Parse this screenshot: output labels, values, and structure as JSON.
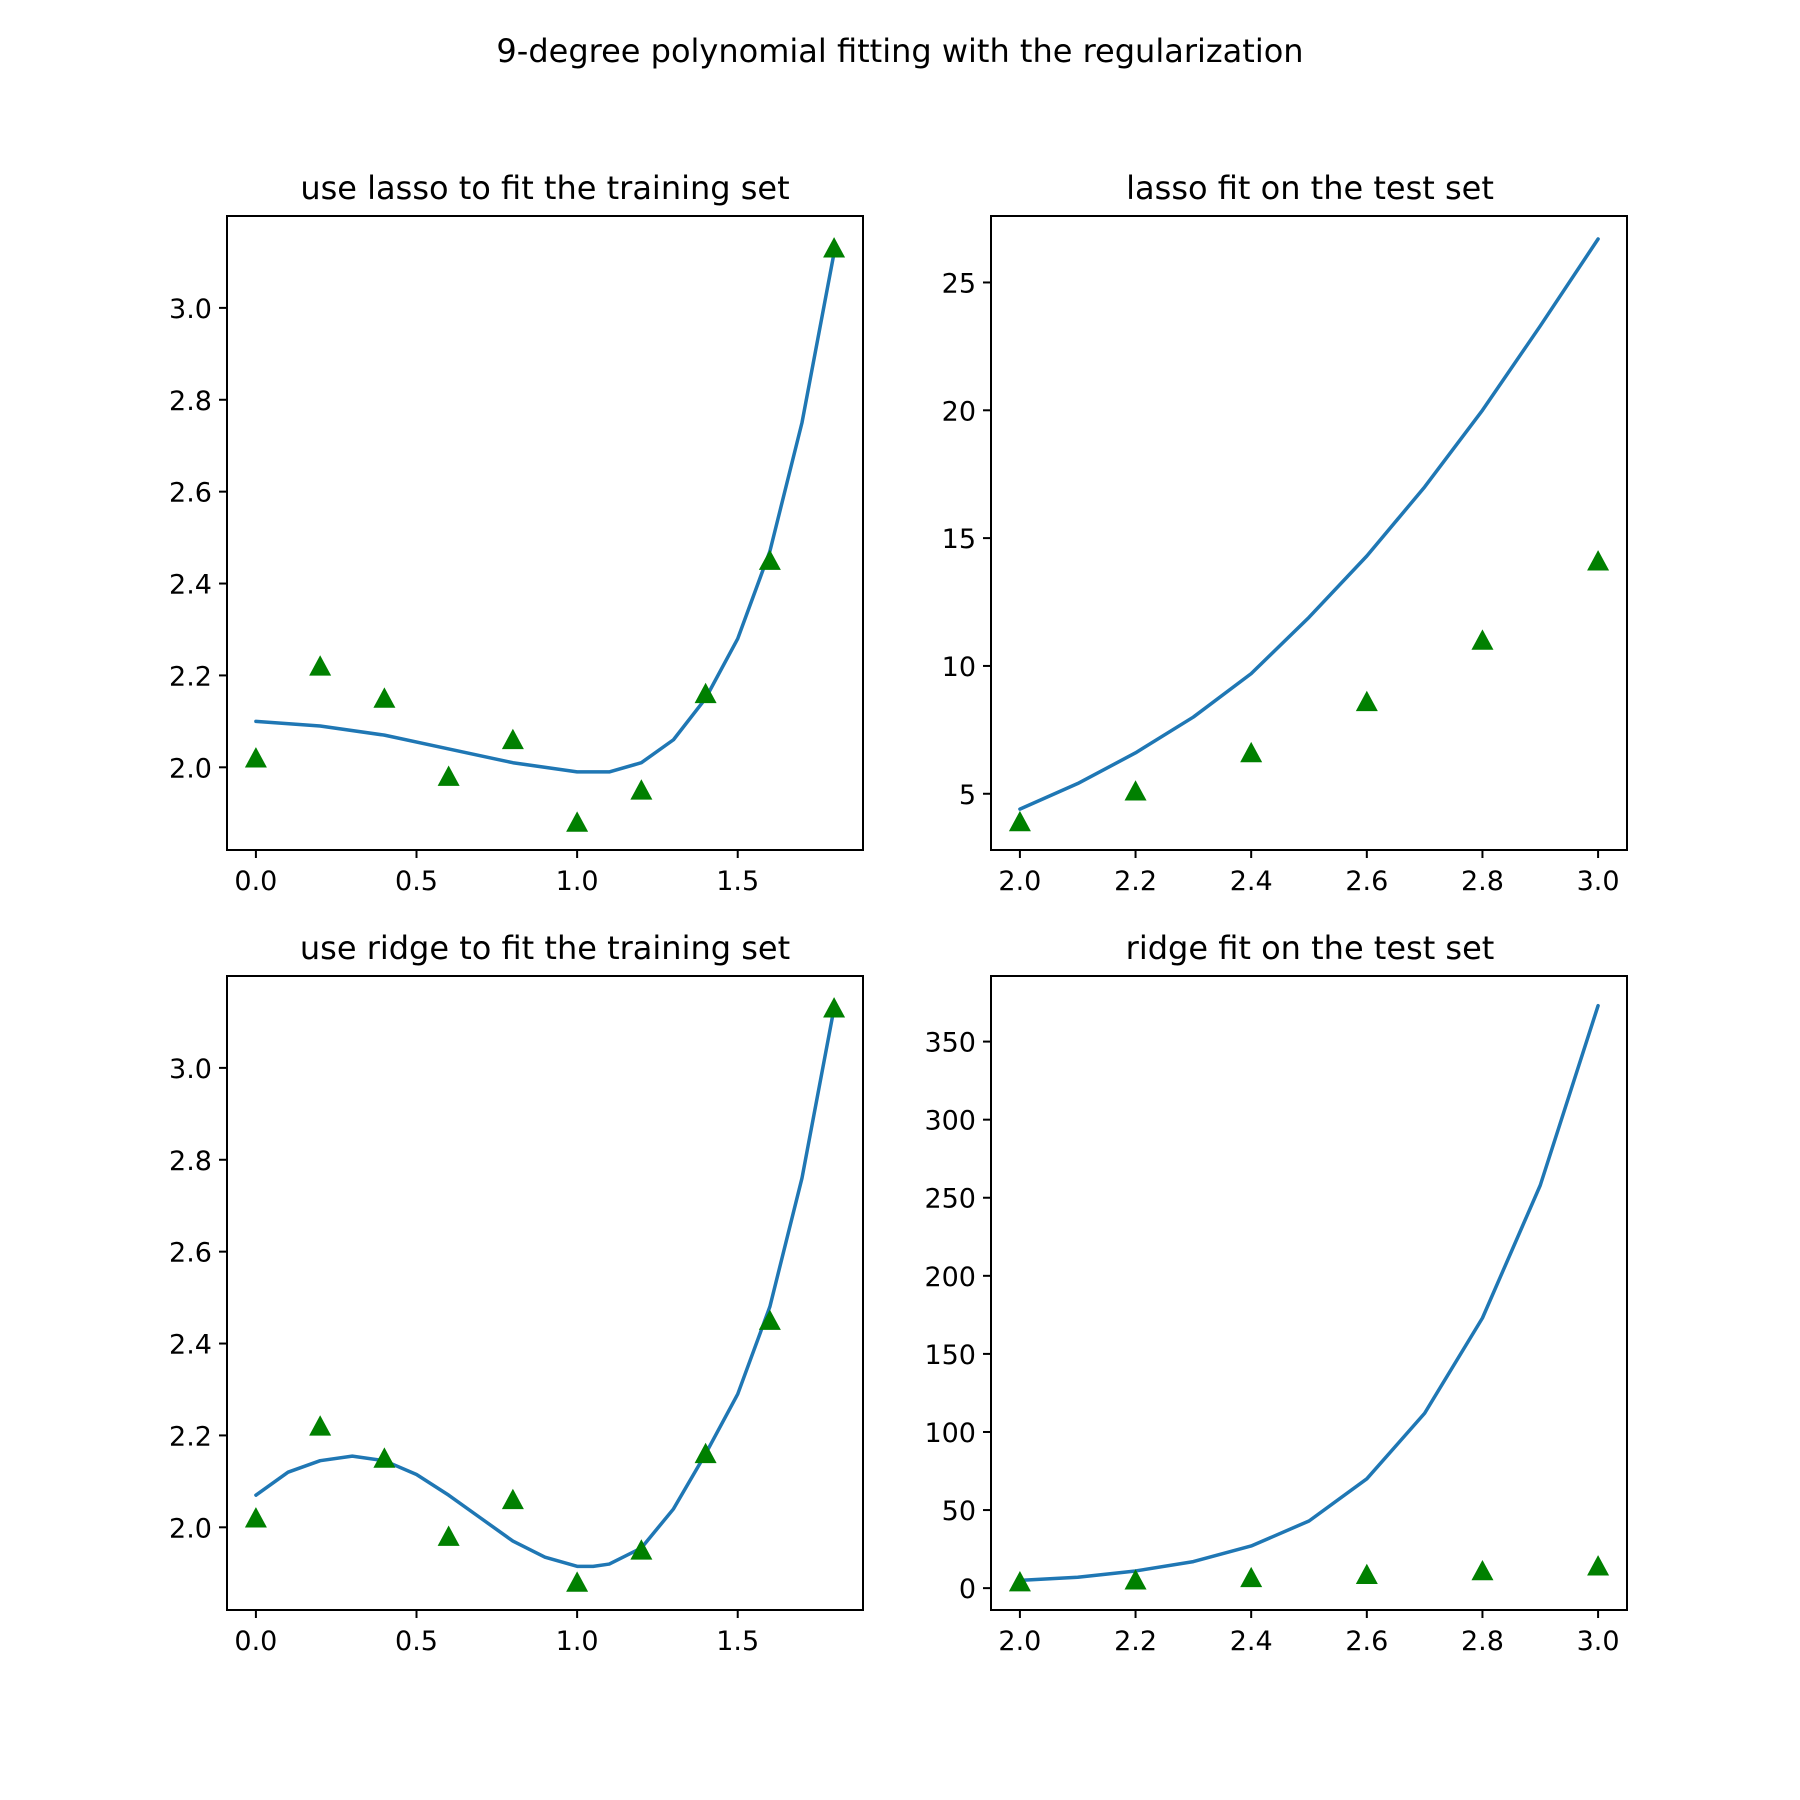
{
  "figure": {
    "title": "9-degree polynomial fitting with the regularization"
  },
  "colors": {
    "line": "#1f77b4",
    "points": "#008000"
  },
  "chart_data": [
    {
      "type": "line",
      "title": "use lasso to fit the training set",
      "xlabel": "",
      "ylabel": "",
      "xlim": [
        -0.09,
        1.89
      ],
      "ylim": [
        1.82,
        3.2
      ],
      "xticks": [
        0.0,
        0.5,
        1.0,
        1.5
      ],
      "xtick_labels": [
        "0.0",
        "0.5",
        "1.0",
        "1.5"
      ],
      "yticks": [
        2.0,
        2.2,
        2.4,
        2.6,
        2.8,
        3.0
      ],
      "ytick_labels": [
        "2.0",
        "2.2",
        "2.4",
        "2.6",
        "2.8",
        "3.0"
      ],
      "grid": false,
      "points": {
        "marker": "triangle",
        "x": [
          0.0,
          0.2,
          0.4,
          0.6,
          0.8,
          1.0,
          1.2,
          1.4,
          1.6,
          1.8
        ],
        "y": [
          2.02,
          2.22,
          2.15,
          1.98,
          2.06,
          1.88,
          1.95,
          2.16,
          2.45,
          3.13
        ]
      },
      "curve": {
        "x": [
          0.0,
          0.2,
          0.4,
          0.6,
          0.8,
          1.0,
          1.1,
          1.2,
          1.3,
          1.4,
          1.5,
          1.6,
          1.7,
          1.8
        ],
        "y": [
          2.1,
          2.09,
          2.07,
          2.04,
          2.01,
          1.99,
          1.99,
          2.01,
          2.06,
          2.15,
          2.28,
          2.47,
          2.75,
          3.12
        ]
      }
    },
    {
      "type": "line",
      "title": "lasso fit on the test set",
      "xlabel": "",
      "ylabel": "",
      "xlim": [
        1.95,
        3.05
      ],
      "ylim": [
        2.8,
        27.6
      ],
      "xticks": [
        2.0,
        2.2,
        2.4,
        2.6,
        2.8,
        3.0
      ],
      "xtick_labels": [
        "2.0",
        "2.2",
        "2.4",
        "2.6",
        "2.8",
        "3.0"
      ],
      "yticks": [
        5,
        10,
        15,
        20,
        25
      ],
      "ytick_labels": [
        "5",
        "10",
        "15",
        "20",
        "25"
      ],
      "grid": false,
      "points": {
        "marker": "triangle",
        "x": [
          2.0,
          2.2,
          2.4,
          2.6,
          2.8,
          3.0
        ],
        "y": [
          3.9,
          5.1,
          6.6,
          8.6,
          11.0,
          14.1
        ]
      },
      "curve": {
        "x": [
          2.0,
          2.1,
          2.2,
          2.3,
          2.4,
          2.5,
          2.6,
          2.7,
          2.8,
          2.9,
          3.0
        ],
        "y": [
          4.4,
          5.4,
          6.6,
          8.0,
          9.7,
          11.9,
          14.3,
          17.0,
          20.0,
          23.3,
          26.7
        ]
      }
    },
    {
      "type": "line",
      "title": "use ridge to fit the training set",
      "xlabel": "",
      "ylabel": "",
      "xlim": [
        -0.09,
        1.89
      ],
      "ylim": [
        1.82,
        3.2
      ],
      "xticks": [
        0.0,
        0.5,
        1.0,
        1.5
      ],
      "xtick_labels": [
        "0.0",
        "0.5",
        "1.0",
        "1.5"
      ],
      "yticks": [
        2.0,
        2.2,
        2.4,
        2.6,
        2.8,
        3.0
      ],
      "ytick_labels": [
        "2.0",
        "2.2",
        "2.4",
        "2.6",
        "2.8",
        "3.0"
      ],
      "grid": false,
      "points": {
        "marker": "triangle",
        "x": [
          0.0,
          0.2,
          0.4,
          0.6,
          0.8,
          1.0,
          1.2,
          1.4,
          1.6,
          1.8
        ],
        "y": [
          2.02,
          2.22,
          2.15,
          1.98,
          2.06,
          1.88,
          1.95,
          2.16,
          2.45,
          3.13
        ]
      },
      "curve": {
        "x": [
          0.0,
          0.1,
          0.2,
          0.3,
          0.4,
          0.5,
          0.6,
          0.7,
          0.8,
          0.9,
          1.0,
          1.05,
          1.1,
          1.2,
          1.3,
          1.4,
          1.5,
          1.6,
          1.7,
          1.8
        ],
        "y": [
          2.07,
          2.12,
          2.145,
          2.155,
          2.145,
          2.115,
          2.07,
          2.02,
          1.97,
          1.935,
          1.915,
          1.915,
          1.92,
          1.955,
          2.04,
          2.16,
          2.29,
          2.48,
          2.76,
          3.13
        ]
      }
    },
    {
      "type": "line",
      "title": "ridge fit on the test set",
      "xlabel": "",
      "ylabel": "",
      "xlim": [
        1.95,
        3.05
      ],
      "ylim": [
        -14,
        392
      ],
      "xticks": [
        2.0,
        2.2,
        2.4,
        2.6,
        2.8,
        3.0
      ],
      "xtick_labels": [
        "2.0",
        "2.2",
        "2.4",
        "2.6",
        "2.8",
        "3.0"
      ],
      "yticks": [
        0,
        50,
        100,
        150,
        200,
        250,
        300,
        350
      ],
      "ytick_labels": [
        "0",
        "50",
        "100",
        "150",
        "200",
        "250",
        "300",
        "350"
      ],
      "grid": false,
      "points": {
        "marker": "triangle",
        "x": [
          2.0,
          2.2,
          2.4,
          2.6,
          2.8,
          3.0
        ],
        "y": [
          3.9,
          5.1,
          6.6,
          8.6,
          11.0,
          14.1
        ]
      },
      "curve": {
        "x": [
          2.0,
          2.1,
          2.2,
          2.3,
          2.4,
          2.5,
          2.6,
          2.7,
          2.8,
          2.9,
          3.0
        ],
        "y": [
          5,
          7,
          11,
          17,
          27,
          43,
          70,
          112,
          173,
          258,
          373
        ]
      }
    }
  ]
}
